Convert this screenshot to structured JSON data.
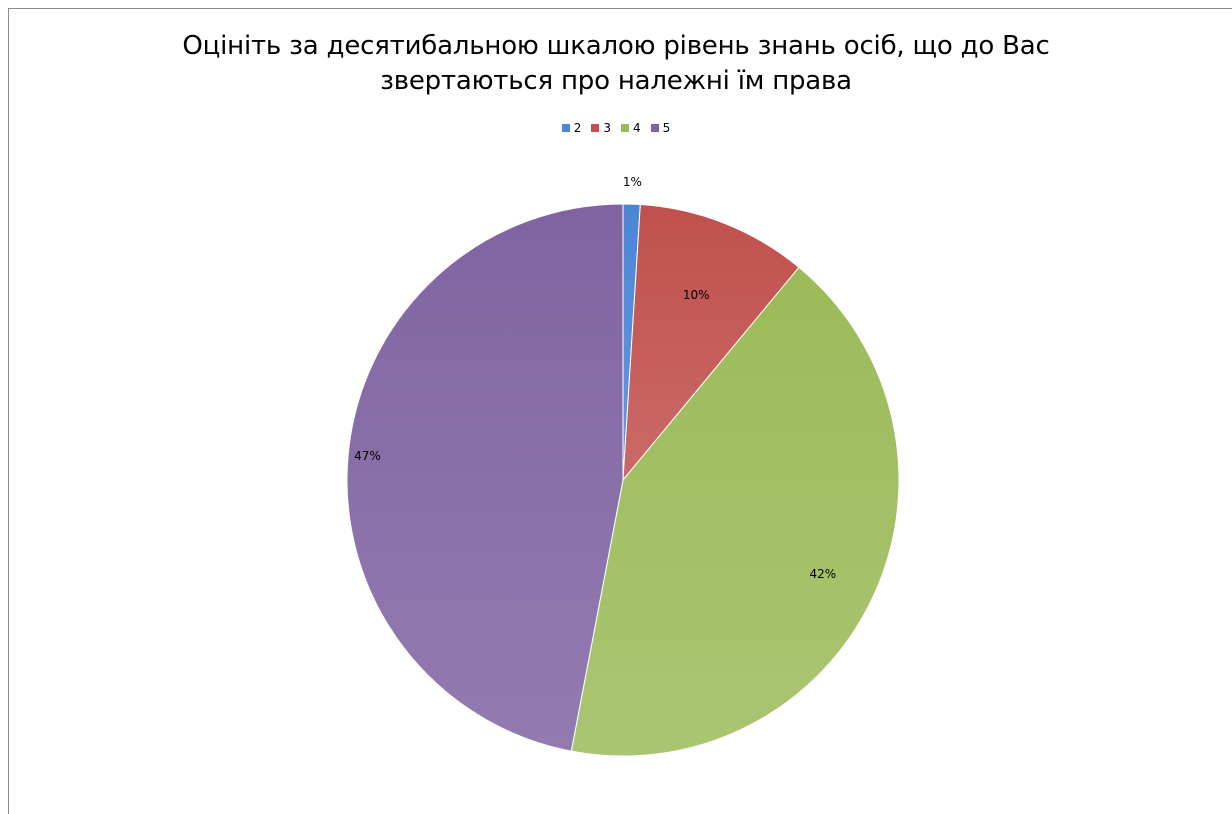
{
  "chart_data": {
    "type": "pie",
    "title": "Оцініть за десятибальною шкалою рівень знань осіб, що до Вас звертаються про належні їм права",
    "title_lines": [
      "Оцініть за десятибальною шкалою рівень знань осіб, що до Вас",
      "звертаються про належні їм права"
    ],
    "categories": [
      "2",
      "3",
      "4",
      "5"
    ],
    "values": [
      1,
      10,
      42,
      47
    ],
    "data_labels": [
      "1%",
      "10%",
      "42%",
      "47%"
    ],
    "colors": [
      "#4a86d6",
      "#c0504d",
      "#9bbb59",
      "#8064a2"
    ],
    "legend_position": "top"
  }
}
